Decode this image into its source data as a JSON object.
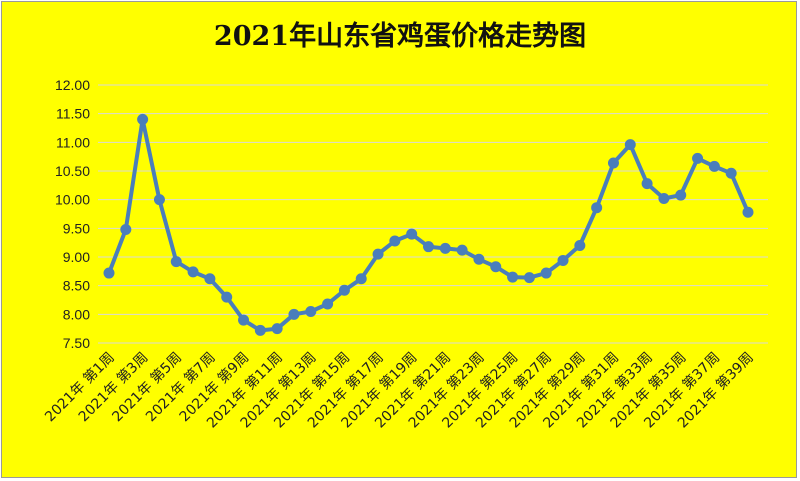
{
  "chart_data": {
    "type": "line",
    "title": "2021年山东省鸡蛋价格走势图",
    "xlabel": "",
    "ylabel": "",
    "ylim": [
      7.5,
      12.0
    ],
    "yticks": [
      "12.00",
      "11.50",
      "11.00",
      "10.50",
      "10.00",
      "9.50",
      "9.00",
      "8.50",
      "8.00",
      "7.50"
    ],
    "categories": [
      "2021年 第1周",
      "2021年 第2周",
      "2021年 第3周",
      "2021年 第4周",
      "2021年 第5周",
      "2021年 第6周",
      "2021年 第7周",
      "2021年 第8周",
      "2021年 第9周",
      "2021年 第10周",
      "2021年 第11周",
      "2021年 第12周",
      "2021年 第13周",
      "2021年 第14周",
      "2021年 第15周",
      "2021年 第16周",
      "2021年 第17周",
      "2021年 第18周",
      "2021年 第19周",
      "2021年 第20周",
      "2021年 第21周",
      "2021年 第22周",
      "2021年 第23周",
      "2021年 第24周",
      "2021年 第25周",
      "2021年 第26周",
      "2021年 第27周",
      "2021年 第28周",
      "2021年 第29周",
      "2021年 第30周",
      "2021年 第31周",
      "2021年 第32周",
      "2021年 第33周",
      "2021年 第34周",
      "2021年 第35周",
      "2021年 第36周",
      "2021年 第37周",
      "2021年 第38周",
      "2021年 第39周"
    ],
    "tick_labels": [
      "2021年 第1周",
      "2021年 第3周",
      "2021年 第5周",
      "2021年 第7周",
      "2021年 第9周",
      "2021年 第11周",
      "2021年 第13周",
      "2021年 第15周",
      "2021年 第17周",
      "2021年 第19周",
      "2021年 第21周",
      "2021年 第23周",
      "2021年 第25周",
      "2021年 第27周",
      "2021年 第29周",
      "2021年 第31周",
      "2021年 第33周",
      "2021年 第35周",
      "2021年 第37周",
      "2021年 第39周"
    ],
    "values": [
      8.72,
      9.48,
      11.4,
      10.0,
      8.92,
      8.74,
      8.62,
      8.3,
      7.9,
      7.72,
      7.75,
      8.0,
      8.05,
      8.18,
      8.42,
      8.62,
      9.05,
      9.28,
      9.4,
      9.18,
      9.15,
      9.12,
      8.96,
      8.83,
      8.65,
      8.64,
      8.72,
      8.94,
      9.2,
      9.86,
      10.64,
      10.96,
      10.28,
      10.02,
      10.08,
      10.72,
      10.58,
      10.46,
      9.78
    ],
    "grid": true,
    "legend": "none",
    "colors": {
      "background": "#ffff00",
      "line": "#4a7ebb",
      "grid": "#d9d9d9",
      "text": "#222222"
    }
  }
}
